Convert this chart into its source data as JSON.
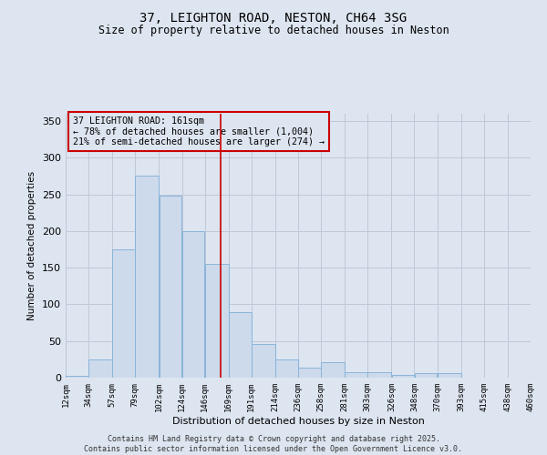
{
  "title": "37, LEIGHTON ROAD, NESTON, CH64 3SG",
  "subtitle": "Size of property relative to detached houses in Neston",
  "xlabel": "Distribution of detached houses by size in Neston",
  "ylabel": "Number of detached properties",
  "footer_line1": "Contains HM Land Registry data © Crown copyright and database right 2025.",
  "footer_line2": "Contains public sector information licensed under the Open Government Licence v3.0.",
  "annotation_line1": "37 LEIGHTON ROAD: 161sqm",
  "annotation_line2": "← 78% of detached houses are smaller (1,004)",
  "annotation_line3": "21% of semi-detached houses are larger (274) →",
  "property_size": 161,
  "bar_left_edges": [
    12,
    34,
    57,
    79,
    102,
    124,
    146,
    169,
    191,
    214,
    236,
    258,
    281,
    303,
    326,
    348,
    370,
    393,
    415,
    438
  ],
  "bar_widths": [
    22,
    23,
    22,
    23,
    22,
    22,
    23,
    22,
    23,
    22,
    22,
    23,
    22,
    23,
    22,
    22,
    23,
    22,
    23,
    22
  ],
  "bar_heights": [
    2,
    25,
    175,
    275,
    248,
    200,
    155,
    90,
    46,
    25,
    14,
    21,
    7,
    8,
    4,
    6,
    6,
    0,
    0,
    0
  ],
  "tick_labels": [
    "12sqm",
    "34sqm",
    "57sqm",
    "79sqm",
    "102sqm",
    "124sqm",
    "146sqm",
    "169sqm",
    "191sqm",
    "214sqm",
    "236sqm",
    "258sqm",
    "281sqm",
    "303sqm",
    "326sqm",
    "348sqm",
    "370sqm",
    "393sqm",
    "415sqm",
    "438sqm",
    "460sqm"
  ],
  "bar_face_color": "#ccdaec",
  "bar_edge_color": "#8ab4d8",
  "red_line_color": "#cc0000",
  "grid_color": "#c0c8d8",
  "background_color": "#dde5f0",
  "ylim": [
    0,
    360
  ],
  "yticks": [
    0,
    50,
    100,
    150,
    200,
    250,
    300,
    350
  ],
  "figsize": [
    6.0,
    5.0
  ],
  "dpi": 100
}
